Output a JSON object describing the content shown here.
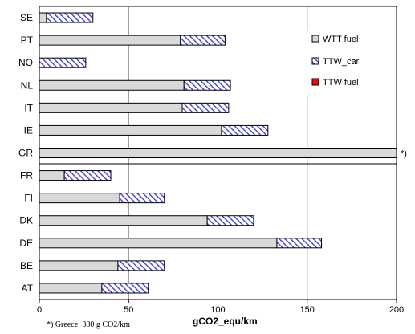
{
  "chart_data": {
    "type": "bar",
    "orientation": "horizontal",
    "stacked": true,
    "categories": [
      "SE",
      "PT",
      "NO",
      "NL",
      "IT",
      "IE",
      "GR",
      "FR",
      "FI",
      "DK",
      "DE",
      "BE",
      "AT"
    ],
    "series": [
      {
        "name": "WTT fuel",
        "color": "#d9d9d9",
        "values": [
          4,
          79,
          0,
          81,
          80,
          102,
          200,
          14,
          45,
          94,
          133,
          44,
          35
        ]
      },
      {
        "name": "TTW_car",
        "color": "#3333cc",
        "pattern": "hatched",
        "values": [
          26,
          25,
          26,
          26,
          26,
          26,
          0,
          26,
          25,
          26,
          25,
          26,
          26
        ]
      },
      {
        "name": "TTW fuel",
        "color": "#ff0000",
        "values": [
          0,
          0,
          0,
          0,
          0,
          0,
          0,
          0,
          0,
          0,
          0,
          0,
          0
        ]
      }
    ],
    "xlim": [
      0,
      200
    ],
    "xticks": [
      "0",
      "50",
      "100",
      "150",
      "200"
    ],
    "xlabel": "gCO2_equ/km",
    "ylabel": "",
    "grid": "vertical",
    "legend": "top-right",
    "annotations": [
      {
        "text": "*)",
        "category": "GR"
      },
      {
        "text": "*) Greece: 380 g CO2/km",
        "position": "bottom-left"
      }
    ]
  }
}
